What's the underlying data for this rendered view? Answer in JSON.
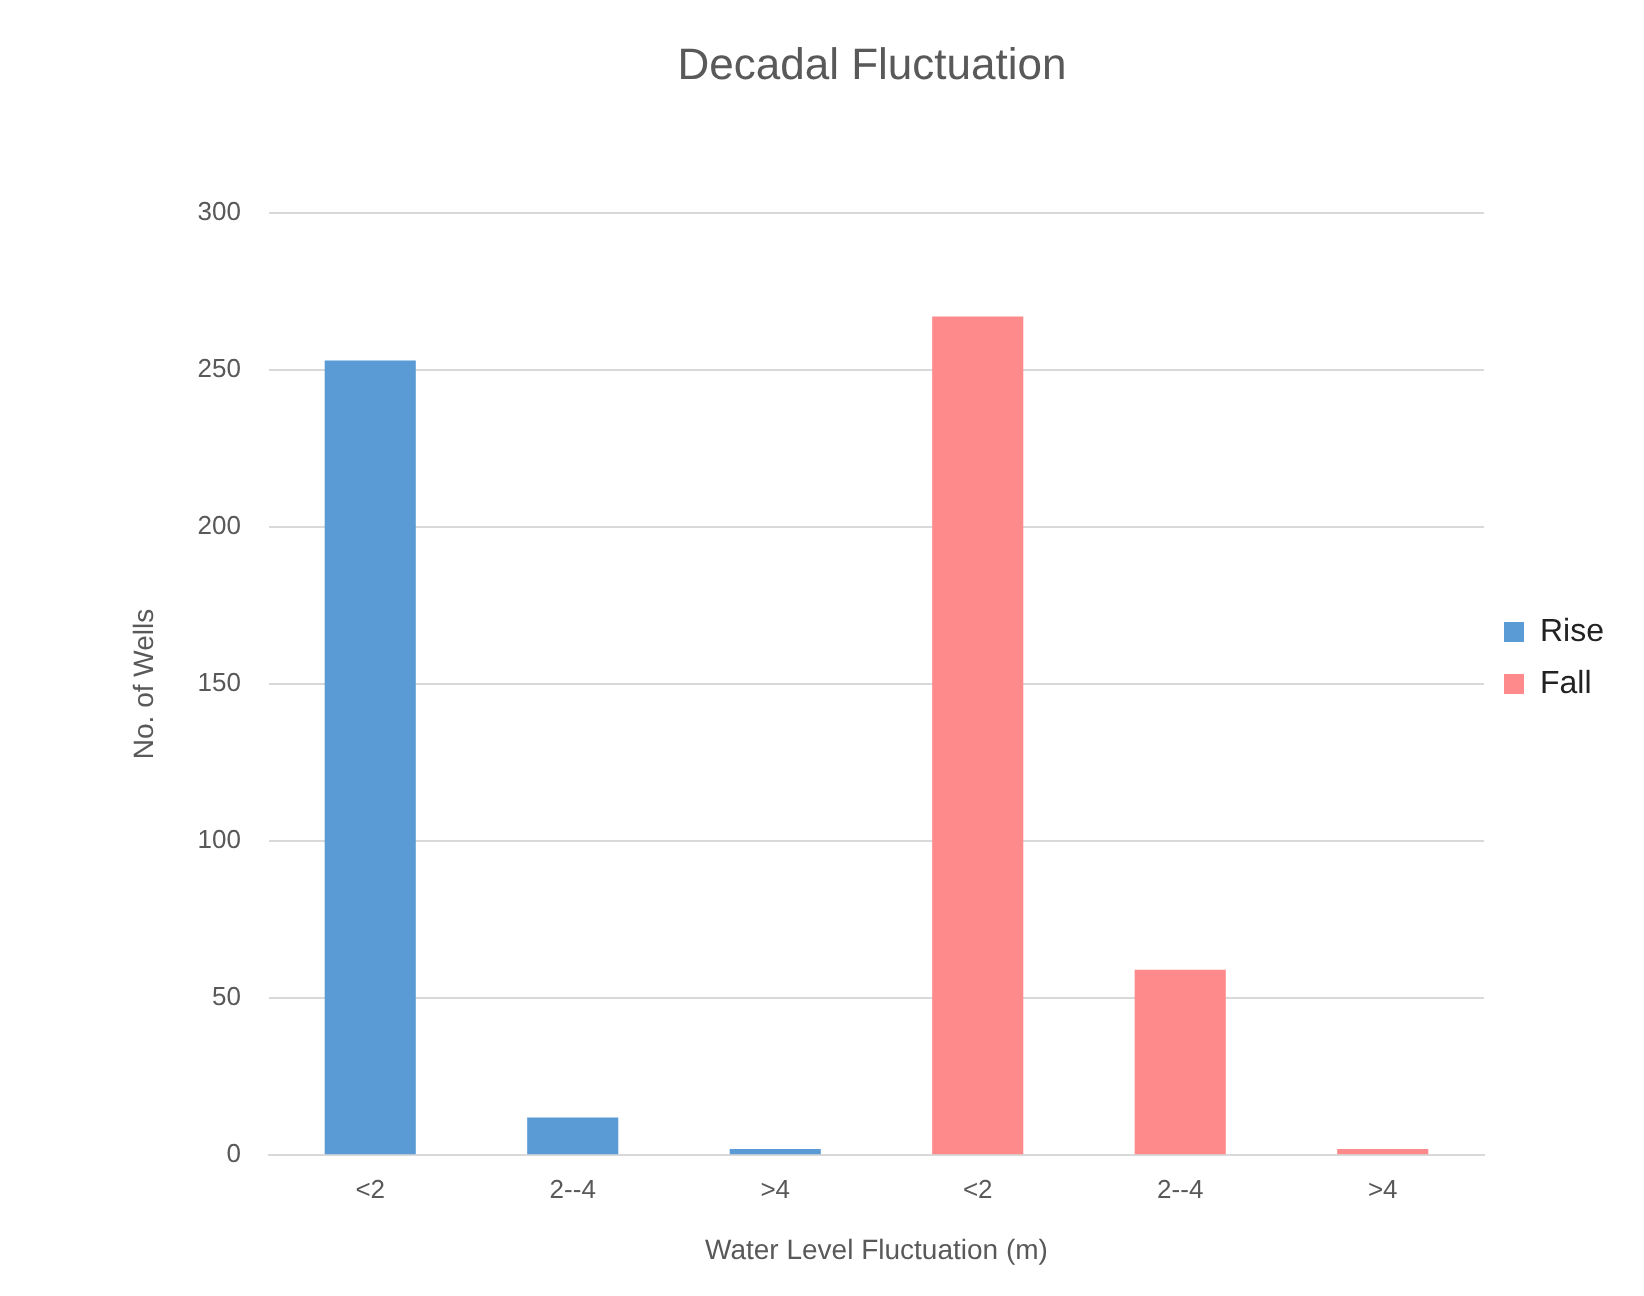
{
  "chart_data": {
    "type": "bar",
    "title": "Decadal Fluctuation",
    "xlabel": "Water Level Fluctuation (m)",
    "ylabel": "No. of Wells",
    "categories": [
      "<2",
      "2--4",
      ">4",
      "<2",
      "2--4",
      ">4"
    ],
    "series": [
      {
        "name": "Rise",
        "color": "#5b9bd5",
        "values": [
          253,
          12,
          2,
          null,
          null,
          null
        ]
      },
      {
        "name": "Fall",
        "color": "#ff8a8c",
        "values": [
          null,
          null,
          null,
          267,
          59,
          2
        ]
      }
    ],
    "ylim": [
      0,
      300
    ],
    "yticks": [
      0,
      50,
      100,
      150,
      200,
      250,
      300
    ],
    "grid": "y",
    "legend": "right"
  }
}
